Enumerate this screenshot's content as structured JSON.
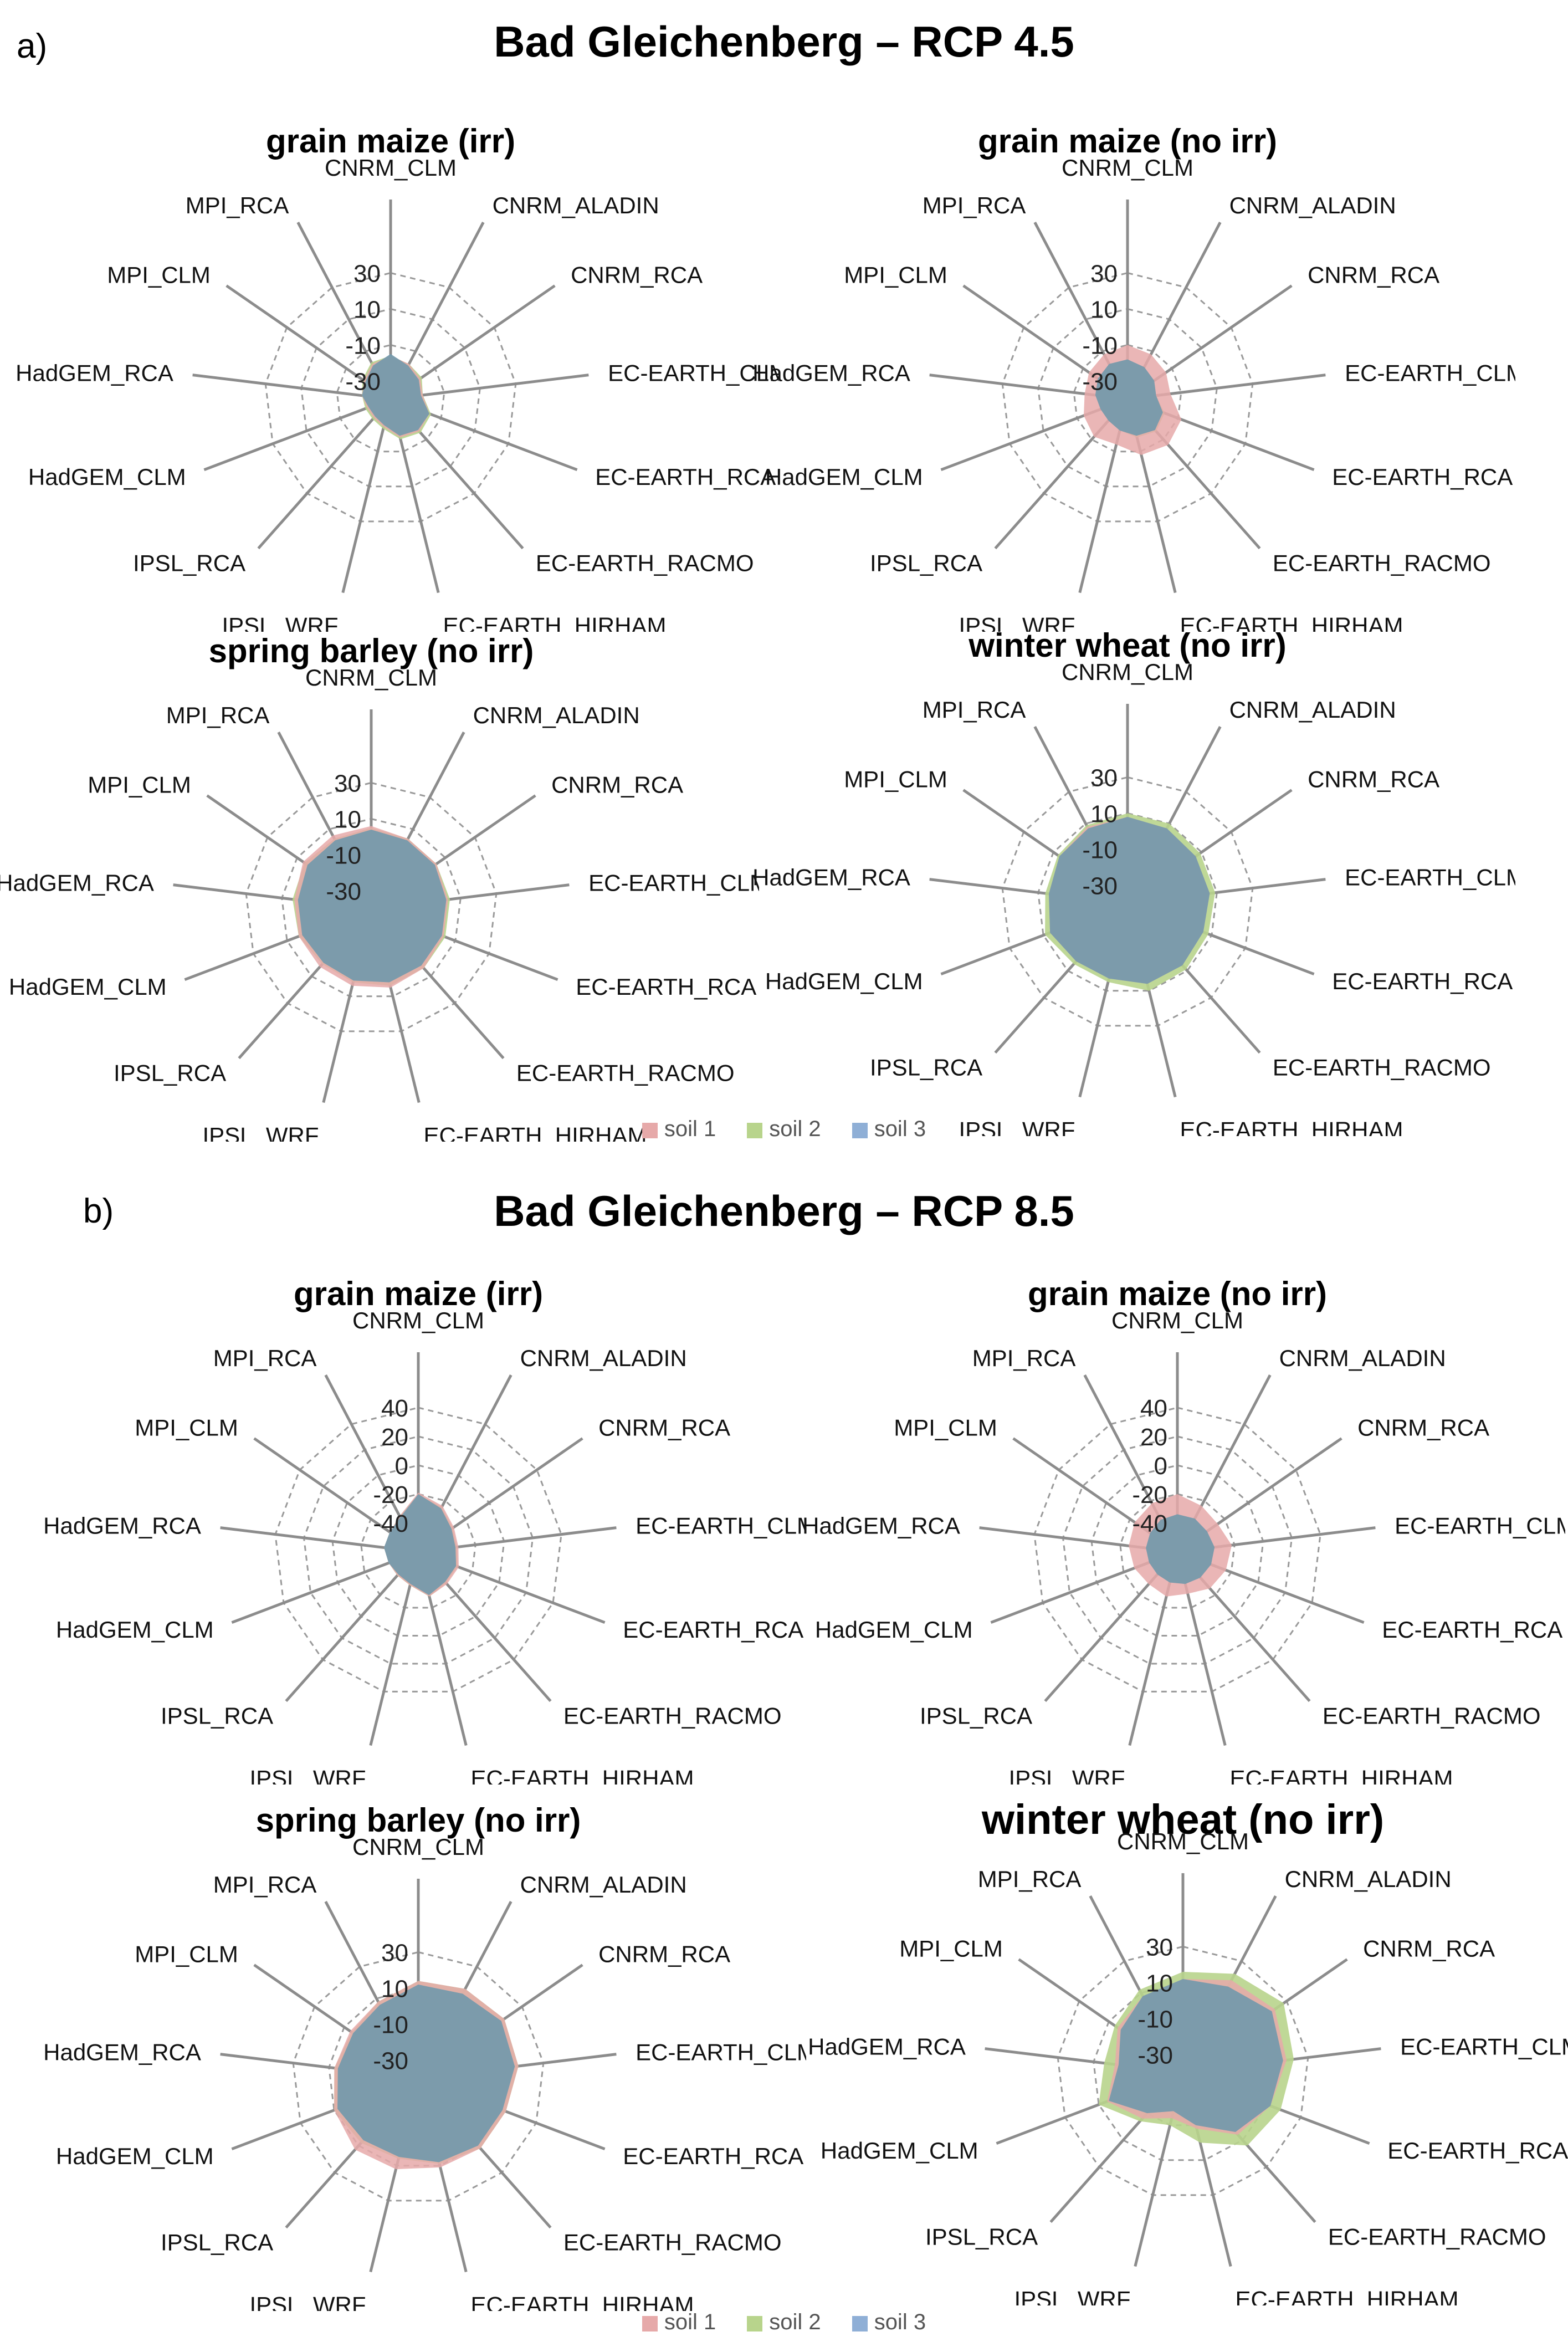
{
  "section_a": {
    "letter": "a)",
    "title": "Bad Gleichenberg – RCP 4.5"
  },
  "section_b": {
    "letter": "b)",
    "title": "Bad Gleichenberg – RCP 8.5"
  },
  "legend": {
    "items": [
      {
        "label": "soil 1",
        "color": "#e6a9a9"
      },
      {
        "label": "soil 2",
        "color": "#b8d48c"
      },
      {
        "label": "soil 3",
        "color": "#8fafd6"
      }
    ]
  },
  "chart_data": [
    {
      "type": "radar",
      "section": "a",
      "title": "grain maize (irr)",
      "categories": [
        "CNRM_CLM",
        "CNRM_ALADIN",
        "CNRM_RCA",
        "EC-EARTH_CLM",
        "EC-EARTH_RCA",
        "EC-EARTH_RACMO",
        "EC-EARTH_HIRHAM",
        "IPSL_WRF",
        "IPSL_RCA",
        "HadGEM_CLM",
        "HadGEM_RCA",
        "MPI_CLM",
        "MPI_RCA"
      ],
      "rlim": [
        -40,
        40
      ],
      "ticks": [
        -30,
        -10,
        10,
        30
      ],
      "series": [
        {
          "name": "soil 1",
          "values": [
            -16,
            -18,
            -20,
            -22,
            -17,
            -16,
            -18,
            -24,
            -26,
            -26,
            -24,
            -22,
            -18
          ]
        },
        {
          "name": "soil 2",
          "values": [
            -16,
            -18,
            -19,
            -22,
            -16,
            -15,
            -17,
            -23,
            -25,
            -25,
            -24,
            -21,
            -17
          ]
        },
        {
          "name": "soil 3",
          "values": [
            -15,
            -19,
            -21,
            -23,
            -17,
            -17,
            -19,
            -25,
            -27,
            -27,
            -24,
            -23,
            -19
          ]
        }
      ]
    },
    {
      "type": "radar",
      "section": "a",
      "title": "grain maize (no irr)",
      "categories": [
        "CNRM_CLM",
        "CNRM_ALADIN",
        "CNRM_RCA",
        "EC-EARTH_CLM",
        "EC-EARTH_RCA",
        "EC-EARTH_RACMO",
        "EC-EARTH_HIRHAM",
        "IPSL_WRF",
        "IPSL_RCA",
        "HadGEM_CLM",
        "HadGEM_RCA",
        "MPI_CLM",
        "MPI_RCA"
      ],
      "rlim": [
        -40,
        40
      ],
      "ticks": [
        -30,
        -10,
        10,
        30
      ],
      "series": [
        {
          "name": "soil 1",
          "values": [
            -10,
            -12,
            -14,
            -16,
            -8,
            -6,
            -8,
            -14,
            -12,
            -14,
            -16,
            -14,
            -12
          ]
        },
        {
          "name": "soil 2",
          "values": [
            -18,
            -20,
            -22,
            -24,
            -18,
            -16,
            -18,
            -22,
            -24,
            -24,
            -22,
            -20,
            -18
          ]
        },
        {
          "name": "soil 3",
          "values": [
            -18,
            -20,
            -22,
            -24,
            -19,
            -17,
            -19,
            -22,
            -24,
            -24,
            -22,
            -20,
            -18
          ]
        }
      ]
    },
    {
      "type": "radar",
      "section": "a",
      "title": "spring barley (no irr)",
      "categories": [
        "CNRM_CLM",
        "CNRM_ALADIN",
        "CNRM_RCA",
        "EC-EARTH_CLM",
        "EC-EARTH_RCA",
        "EC-EARTH_RACMO",
        "EC-EARTH_HIRHAM",
        "IPSL_WRF",
        "IPSL_RCA",
        "HadGEM_CLM",
        "HadGEM_RCA",
        "MPI_CLM",
        "MPI_RCA"
      ],
      "rlim": [
        -40,
        40
      ],
      "ticks": [
        -30,
        -10,
        10,
        30
      ],
      "series": [
        {
          "name": "soil 1",
          "values": [
            6,
            4,
            4,
            3,
            3,
            4,
            5,
            4,
            3,
            3,
            3,
            6,
            6
          ]
        },
        {
          "name": "soil 2",
          "values": [
            5,
            4,
            4,
            4,
            4,
            4,
            4,
            2,
            1,
            3,
            4,
            5,
            4
          ]
        },
        {
          "name": "soil 3",
          "values": [
            4,
            3,
            3,
            2,
            2,
            2,
            2,
            1,
            0,
            1,
            1,
            3,
            3
          ]
        }
      ]
    },
    {
      "type": "radar",
      "section": "a",
      "title": "winter wheat (no irr)",
      "categories": [
        "CNRM_CLM",
        "CNRM_ALADIN",
        "CNRM_RCA",
        "EC-EARTH_CLM",
        "EC-EARTH_RCA",
        "EC-EARTH_RACMO",
        "EC-EARTH_HIRHAM",
        "IPSL_WRF",
        "IPSL_RCA",
        "HadGEM_CLM",
        "HadGEM_RCA",
        "MPI_CLM",
        "MPI_RCA"
      ],
      "rlim": [
        -40,
        40
      ],
      "ticks": [
        -30,
        -10,
        10,
        30
      ],
      "series": [
        {
          "name": "soil 1",
          "values": [
            8,
            7,
            6,
            6,
            5,
            6,
            6,
            3,
            3,
            6,
            4,
            6,
            8
          ]
        },
        {
          "name": "soil 2",
          "values": [
            10,
            10,
            9,
            9,
            8,
            9,
            10,
            5,
            5,
            9,
            6,
            7,
            9
          ]
        },
        {
          "name": "soil 3",
          "values": [
            8,
            7,
            6,
            6,
            5,
            6,
            6,
            3,
            3,
            6,
            4,
            6,
            7
          ]
        }
      ]
    },
    {
      "type": "radar",
      "section": "b",
      "title": "grain maize (irr)",
      "categories": [
        "CNRM_CLM",
        "CNRM_ALADIN",
        "CNRM_RCA",
        "EC-EARTH_CLM",
        "EC-EARTH_RCA",
        "EC-EARTH_RACMO",
        "EC-EARTH_HIRHAM",
        "IPSL_WRF",
        "IPSL_RCA",
        "HadGEM_CLM",
        "HadGEM_RCA",
        "MPI_CLM",
        "MPI_RCA"
      ],
      "rlim": [
        -60,
        40
      ],
      "ticks": [
        -40,
        -20,
        0,
        20,
        40
      ],
      "series": [
        {
          "name": "soil 1",
          "values": [
            -19,
            -24,
            -30,
            -32,
            -30,
            -30,
            -28,
            -36,
            -38,
            -38,
            -36,
            -36,
            -32
          ]
        },
        {
          "name": "soil 2",
          "values": [
            -20,
            -25,
            -31,
            -33,
            -31,
            -31,
            -28,
            -36,
            -38,
            -38,
            -36,
            -36,
            -32
          ]
        },
        {
          "name": "soil 3",
          "values": [
            -20,
            -26,
            -32,
            -34,
            -32,
            -32,
            -29,
            -37,
            -39,
            -38,
            -36,
            -36,
            -33
          ]
        }
      ]
    },
    {
      "type": "radar",
      "section": "b",
      "title": "grain maize (no irr)",
      "categories": [
        "CNRM_CLM",
        "CNRM_ALADIN",
        "CNRM_RCA",
        "EC-EARTH_CLM",
        "EC-EARTH_RCA",
        "EC-EARTH_RACMO",
        "EC-EARTH_HIRHAM",
        "IPSL_WRF",
        "IPSL_RCA",
        "HadGEM_CLM",
        "HadGEM_RCA",
        "MPI_CLM",
        "MPI_RCA"
      ],
      "rlim": [
        -60,
        40
      ],
      "ticks": [
        -40,
        -20,
        0,
        20,
        40
      ],
      "series": [
        {
          "name": "soil 1",
          "values": [
            -20,
            -24,
            -26,
            -22,
            -24,
            -26,
            -30,
            -28,
            -30,
            -28,
            -26,
            -24,
            -22
          ]
        },
        {
          "name": "soil 2",
          "values": [
            -34,
            -35,
            -36,
            -34,
            -35,
            -36,
            -37,
            -38,
            -39,
            -39,
            -38,
            -37,
            -35
          ]
        },
        {
          "name": "soil 3",
          "values": [
            -34,
            -34,
            -35,
            -34,
            -35,
            -36,
            -37,
            -38,
            -39,
            -39,
            -38,
            -37,
            -35
          ]
        }
      ]
    },
    {
      "type": "radar",
      "section": "b",
      "title": "spring barley (no irr)",
      "categories": [
        "CNRM_CLM",
        "CNRM_ALADIN",
        "CNRM_RCA",
        "EC-EARTH_CLM",
        "EC-EARTH_RCA",
        "EC-EARTH_RACMO",
        "EC-EARTH_HIRHAM",
        "IPSL_WRF",
        "IPSL_RCA",
        "HadGEM_CLM",
        "HadGEM_RCA",
        "MPI_CLM",
        "MPI_RCA"
      ],
      "rlim": [
        -40,
        40
      ],
      "ticks": [
        -30,
        -10,
        10,
        30
      ],
      "series": [
        {
          "name": "soil 1",
          "values": [
            14,
            16,
            18,
            16,
            12,
            12,
            11,
            12,
            13,
            10,
            7,
            6,
            8
          ]
        },
        {
          "name": "soil 2",
          "values": [
            14,
            16,
            18,
            16,
            12,
            12,
            9,
            6,
            8,
            10,
            7,
            5,
            8
          ]
        },
        {
          "name": "soil 3",
          "values": [
            12,
            13,
            16,
            14,
            10,
            10,
            8,
            5,
            6,
            8,
            5,
            4,
            6
          ]
        }
      ]
    },
    {
      "type": "radar",
      "section": "b",
      "title": "winter wheat (no irr)",
      "categories": [
        "CNRM_CLM",
        "CNRM_ALADIN",
        "CNRM_RCA",
        "EC-EARTH_CLM",
        "EC-EARTH_RCA",
        "EC-EARTH_RACMO",
        "EC-EARTH_HIRHAM",
        "IPSL_WRF",
        "IPSL_RCA",
        "HadGEM_CLM",
        "HadGEM_RCA",
        "MPI_CLM",
        "MPI_RCA"
      ],
      "rlim": [
        -40,
        40
      ],
      "ticks": [
        -30,
        -10,
        10,
        30
      ],
      "series": [
        {
          "name": "soil 1",
          "values": [
            12,
            18,
            22,
            18,
            12,
            6,
            -8,
            -14,
            -6,
            5,
            -2,
            4,
            8
          ]
        },
        {
          "name": "soil 2",
          "values": [
            16,
            22,
            28,
            22,
            18,
            14,
            0,
            -10,
            -4,
            10,
            4,
            6,
            12
          ]
        },
        {
          "name": "soil 3",
          "values": [
            12,
            14,
            20,
            16,
            12,
            4,
            -10,
            -18,
            -10,
            4,
            -4,
            2,
            8
          ]
        }
      ]
    }
  ]
}
